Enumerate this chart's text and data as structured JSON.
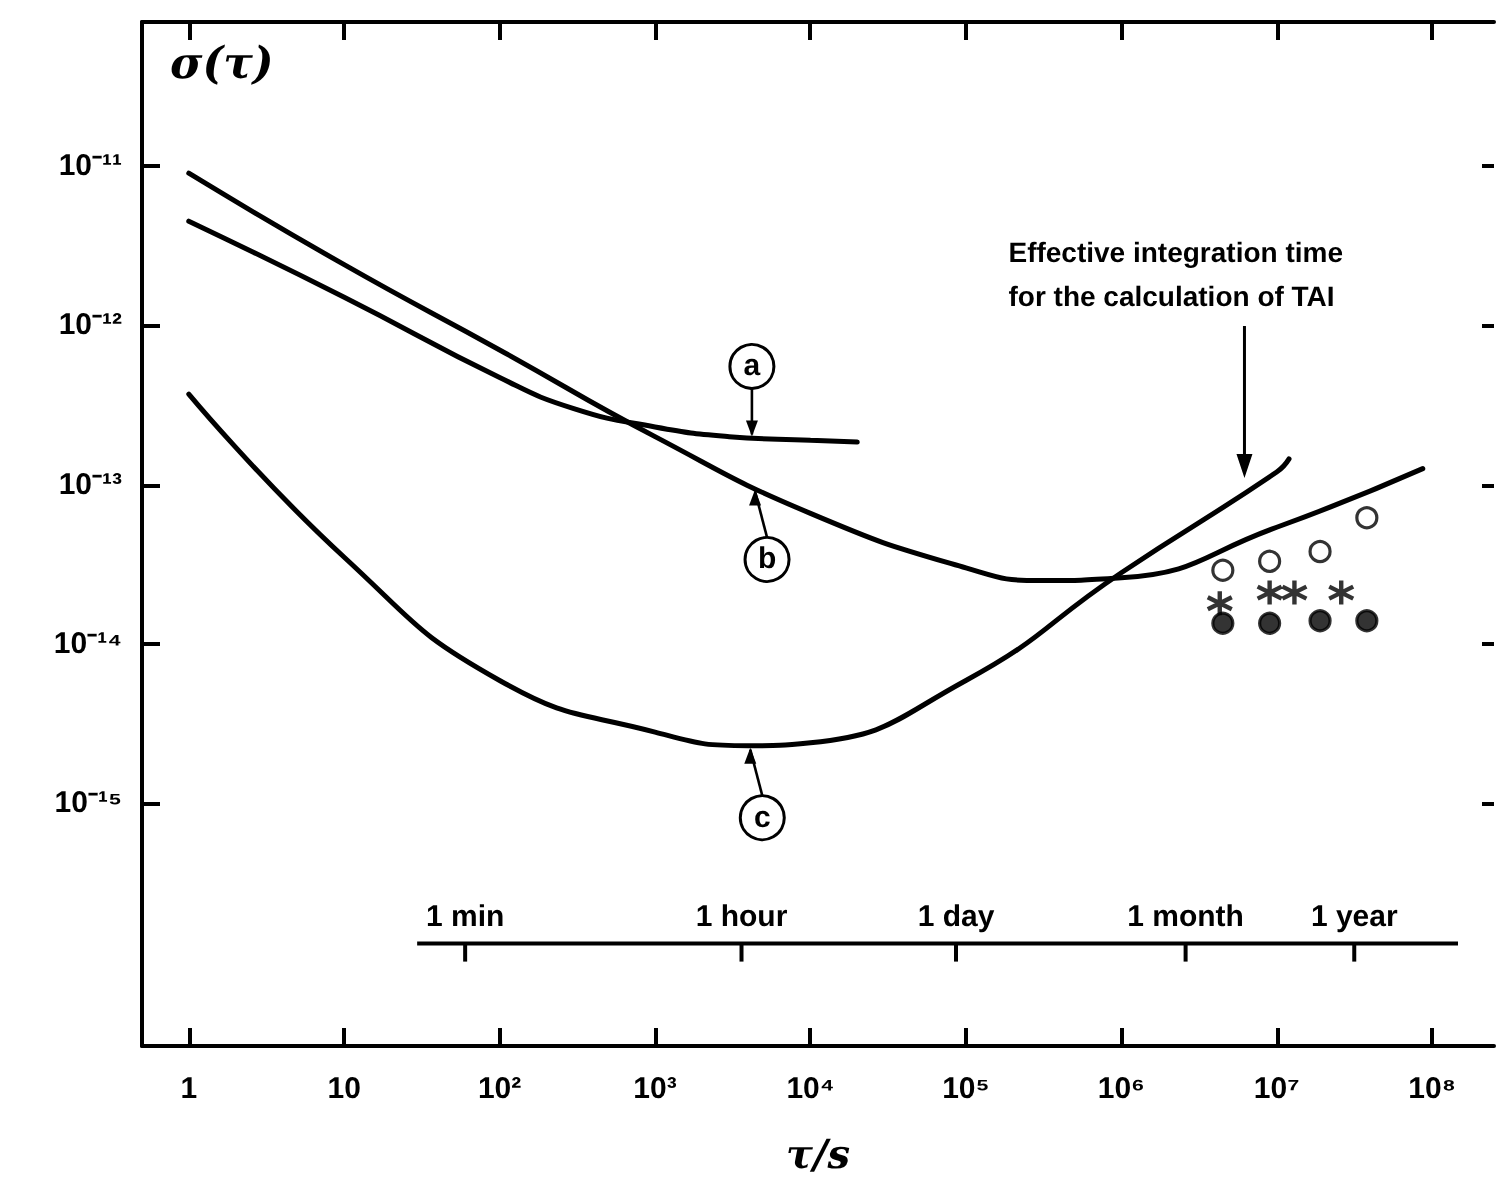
{
  "chart_data": {
    "type": "line",
    "xlabel": "τ/s",
    "ylabel": "σ(τ)",
    "log": "xy",
    "grid": false,
    "xlim": [
      0.5,
      250000000
    ],
    "ylim": [
      3e-17,
      8e-11
    ],
    "xticks": [
      1,
      10,
      {
        "value": 100,
        "label": "10²"
      },
      {
        "value": 1000,
        "label": "10³"
      },
      {
        "value": 10000,
        "label": "10⁴"
      },
      {
        "value": 100000,
        "label": "10⁵"
      },
      {
        "value": 1000000,
        "label": "10⁶"
      },
      {
        "value": 10000000,
        "label": "10⁷"
      },
      {
        "value": 100000000,
        "label": "10⁸"
      }
    ],
    "yticks": [
      {
        "value": 1e-11,
        "label": "10⁻¹¹"
      },
      {
        "value": 1e-12,
        "label": "10⁻¹²"
      },
      {
        "value": 1e-13,
        "label": "10⁻¹³"
      },
      {
        "value": 1e-14,
        "label": "10⁻¹⁴"
      },
      {
        "value": 1e-15,
        "label": "10⁻¹⁵"
      }
    ],
    "series": [
      {
        "color": "#000000",
        "x": [
          1,
          10,
          100,
          300,
          1000,
          3000,
          10000,
          20000
        ],
        "values": [
          4.5e-12,
          1.5e-12,
          4.7e-13,
          3e-13,
          2.3e-13,
          2e-13,
          1.9e-13,
          1.85e-13
        ]
      },
      {
        "color": "#000000",
        "x": [
          1,
          10,
          100,
          1000,
          10000,
          100000,
          300000,
          1000000,
          10000000,
          87000000
        ],
        "values": [
          9e-12,
          2.4e-12,
          7e-13,
          2e-13,
          6.6e-14,
          3e-14,
          2.5e-14,
          2.6e-14,
          5.4e-14,
          1.26e-13
        ]
      },
      {
        "color": "#000000",
        "x": [
          1,
          10,
          100,
          1000,
          4000,
          10000,
          100000,
          1000000,
          10000000,
          12000000
        ],
        "values": [
          3.7e-13,
          3.5e-14,
          5.9e-15,
          2.8e-15,
          2.3e-15,
          2.4e-15,
          5.9e-15,
          2.8e-14,
          1.2e-13,
          1.45e-13
        ]
      },
      {
        "type": "scatter",
        "marker": "circle",
        "color": "#ffffff",
        "x": [
          4500000,
          9000000,
          19000000,
          38000000
        ],
        "values": [
          2.9e-14,
          3.3e-14,
          3.8e-14,
          6.2e-14
        ]
      },
      {
        "type": "scatter",
        "marker": "cross",
        "color": "#000000",
        "x": [
          4300000,
          9000000,
          13000000,
          26000000
        ],
        "values": [
          1.8e-14,
          2.1e-14,
          2.1e-14,
          2.1e-14
        ]
      },
      {
        "type": "scatter",
        "marker": "circle",
        "color": "#000000",
        "x": [
          4500000,
          9000000,
          19000000,
          38000000
        ],
        "values": [
          1.35e-14,
          1.35e-14,
          1.4e-14,
          1.4e-14
        ]
      }
    ],
    "annotations": [
      {
        "text": "a",
        "x": 4200,
        "y": 1.95e-13
      },
      {
        "text": "b",
        "x": 4400,
        "y": 9.6e-14
      },
      {
        "text": "c",
        "x": 4100,
        "y": 2.3e-15
      },
      {
        "text": "Effective integration time for the calculation of TAI",
        "x": 6200000,
        "y": 1.1e-13
      }
    ],
    "ref_lines": [
      {
        "axis": "x",
        "value": 60,
        "label": "1 min"
      },
      {
        "axis": "x",
        "value": 3600,
        "label": "1 hour"
      },
      {
        "axis": "x",
        "value": 86400,
        "label": "1 day"
      },
      {
        "axis": "x",
        "value": 2592000,
        "label": "1 month"
      },
      {
        "axis": "x",
        "value": 31536000,
        "label": "1 year"
      }
    ]
  }
}
